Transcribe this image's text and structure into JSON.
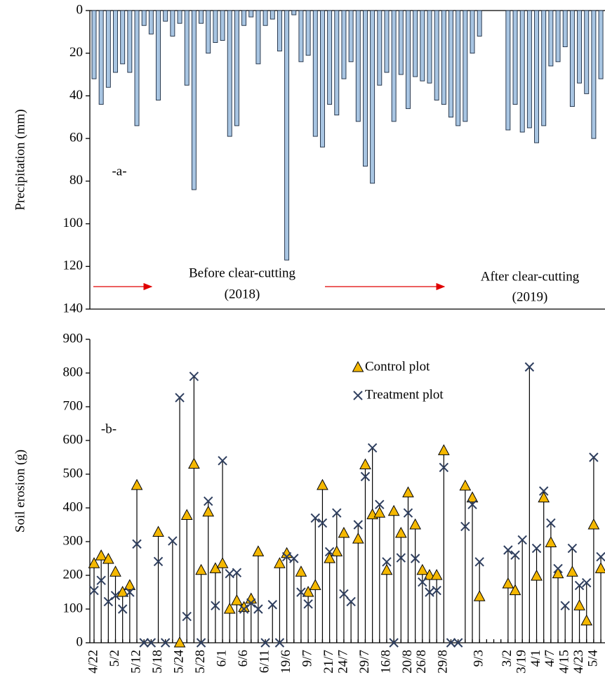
{
  "chart_data": [
    {
      "type": "bar",
      "y_label": "Precipitation (mm)",
      "ylim": [
        0,
        140
      ],
      "yticks": [
        0,
        20,
        40,
        60,
        80,
        100,
        120,
        140
      ],
      "y_inverted": true,
      "color": "#a8c5e2",
      "values": [
        32,
        44,
        36,
        29,
        25,
        29,
        54,
        7,
        11,
        42,
        5,
        12,
        6,
        35,
        84,
        6,
        20,
        15,
        14,
        59,
        54,
        7,
        3,
        25,
        7,
        4,
        19,
        117,
        2,
        24,
        21,
        59,
        64,
        44,
        49,
        32,
        24,
        52,
        73,
        81,
        35,
        29,
        52,
        30,
        46,
        31,
        33,
        34,
        42,
        44,
        50,
        54,
        52,
        20,
        12,
        null,
        null,
        null,
        56,
        44,
        57,
        55,
        62,
        54,
        26,
        24,
        17,
        45,
        34,
        39,
        60,
        32
      ],
      "annotations": [
        "-a-",
        "Before clear-cutting",
        "(2018)",
        "After clear-cutting",
        "(2019)"
      ]
    },
    {
      "type": "stem",
      "y_label": "Soil erosion (g)",
      "ylim": [
        0,
        900
      ],
      "yticks": [
        0,
        100,
        200,
        300,
        400,
        500,
        600,
        700,
        800,
        900
      ],
      "legend": "upper center",
      "categories": [
        "4/22",
        null,
        null,
        "5/2",
        null,
        null,
        "5/12",
        null,
        null,
        "5/18",
        null,
        null,
        "5/24",
        null,
        null,
        "5/28",
        null,
        null,
        "6/1",
        null,
        null,
        "6/6",
        null,
        null,
        "6/11",
        null,
        null,
        "19/6",
        null,
        null,
        "9/7",
        null,
        null,
        "21/7",
        null,
        "24/7",
        null,
        null,
        "29/7",
        null,
        null,
        "16/8",
        null,
        null,
        "20/8",
        null,
        "26/8",
        null,
        null,
        "29/8",
        null,
        null,
        null,
        null,
        "9/3",
        null,
        null,
        null,
        "3/2",
        null,
        "3/19",
        null,
        "4/1",
        null,
        "4/7",
        null,
        "4/15",
        null,
        "4/23",
        null,
        "5/4",
        null
      ],
      "series": [
        {
          "name": "Control plot",
          "marker": "triangle",
          "color": "#f5b800",
          "values": [
            235,
            258,
            248,
            210,
            150,
            170,
            467,
            null,
            null,
            328,
            null,
            null,
            0,
            378,
            530,
            215,
            388,
            220,
            235,
            100,
            125,
            105,
            130,
            270,
            null,
            null,
            235,
            265,
            null,
            210,
            150,
            170,
            467,
            250,
            270,
            325,
            null,
            308,
            528,
            380,
            385,
            215,
            390,
            325,
            445,
            350,
            215,
            200,
            200,
            570,
            null,
            null,
            465,
            430,
            137,
            null,
            null,
            null,
            175,
            155,
            null,
            null,
            198,
            430,
            297,
            205,
            null,
            210,
            110,
            65,
            350,
            220
          ]
        },
        {
          "name": "Treatment plot",
          "marker": "x",
          "color": "#2f3f5f",
          "values": [
            155,
            185,
            122,
            140,
            100,
            150,
            293,
            0,
            0,
            241,
            0,
            302,
            727,
            78,
            790,
            0,
            420,
            110,
            540,
            205,
            208,
            100,
            118,
            100,
            0,
            113,
            0,
            255,
            250,
            150,
            115,
            370,
            355,
            270,
            385,
            145,
            122,
            350,
            493,
            578,
            410,
            240,
            0,
            252,
            385,
            250,
            180,
            150,
            155,
            520,
            0,
            0,
            345,
            410,
            240,
            null,
            null,
            null,
            275,
            260,
            305,
            818,
            280,
            450,
            355,
            220,
            110,
            280,
            170,
            178,
            550,
            255
          ]
        }
      ],
      "annotations": [
        "-b-"
      ]
    }
  ]
}
